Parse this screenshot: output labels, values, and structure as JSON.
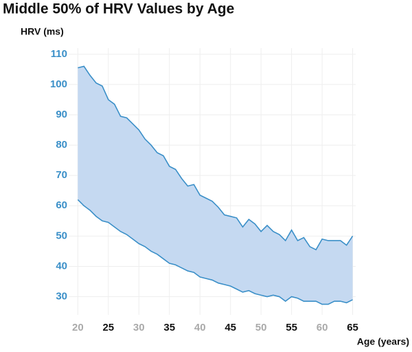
{
  "chart_data": {
    "type": "band",
    "title": "Middle 50% of HRV Values by Age",
    "y_label": "HRV (ms)",
    "x_label": "Age (years)",
    "x": [
      20,
      21,
      22,
      23,
      24,
      25,
      26,
      27,
      28,
      29,
      30,
      31,
      32,
      33,
      34,
      35,
      36,
      37,
      38,
      39,
      40,
      41,
      42,
      43,
      44,
      45,
      46,
      47,
      48,
      49,
      50,
      51,
      52,
      53,
      54,
      55,
      56,
      57,
      58,
      59,
      60,
      61,
      62,
      63,
      64,
      65
    ],
    "series": [
      {
        "color": "#3a8fc8",
        "values": [
          105.5,
          106,
          103,
          100.5,
          99.5,
          95,
          93.5,
          89.5,
          89,
          87,
          85,
          82,
          80,
          77.5,
          76.5,
          73,
          72,
          69,
          66.5,
          67,
          63.5,
          62.5,
          61.5,
          59.5,
          57,
          56.5,
          56,
          53,
          55.5,
          54,
          51.5,
          53.5,
          51.5,
          50.5,
          48.5,
          52,
          48.5,
          49.5,
          46.5,
          45.5,
          49,
          48.5,
          48.5,
          48.5,
          47,
          50
        ]
      },
      {
        "color": "#3a8fc8",
        "values": [
          62,
          60,
          58.5,
          56.5,
          55,
          54.5,
          53,
          51.5,
          50.5,
          49,
          47.5,
          46.5,
          45,
          44,
          42.5,
          41,
          40.5,
          39.5,
          38.5,
          38,
          36.5,
          36,
          35.5,
          34.5,
          34,
          33.5,
          32.5,
          31.5,
          32,
          31,
          30.5,
          30,
          30.5,
          30,
          28.5,
          30,
          29.5,
          28.5,
          28.5,
          28.5,
          27.5,
          27.5,
          28.5,
          28.5,
          28,
          29
        ]
      }
    ],
    "fill_color": "#c5d9f1",
    "xlim": [
      18.5,
      65.5
    ],
    "xticks": [
      20,
      25,
      30,
      35,
      40,
      45,
      50,
      55,
      60,
      65
    ],
    "ylim": [
      24,
      112
    ],
    "yticks": [
      30,
      40,
      50,
      60,
      70,
      80,
      90,
      100,
      110
    ],
    "grid": true
  }
}
